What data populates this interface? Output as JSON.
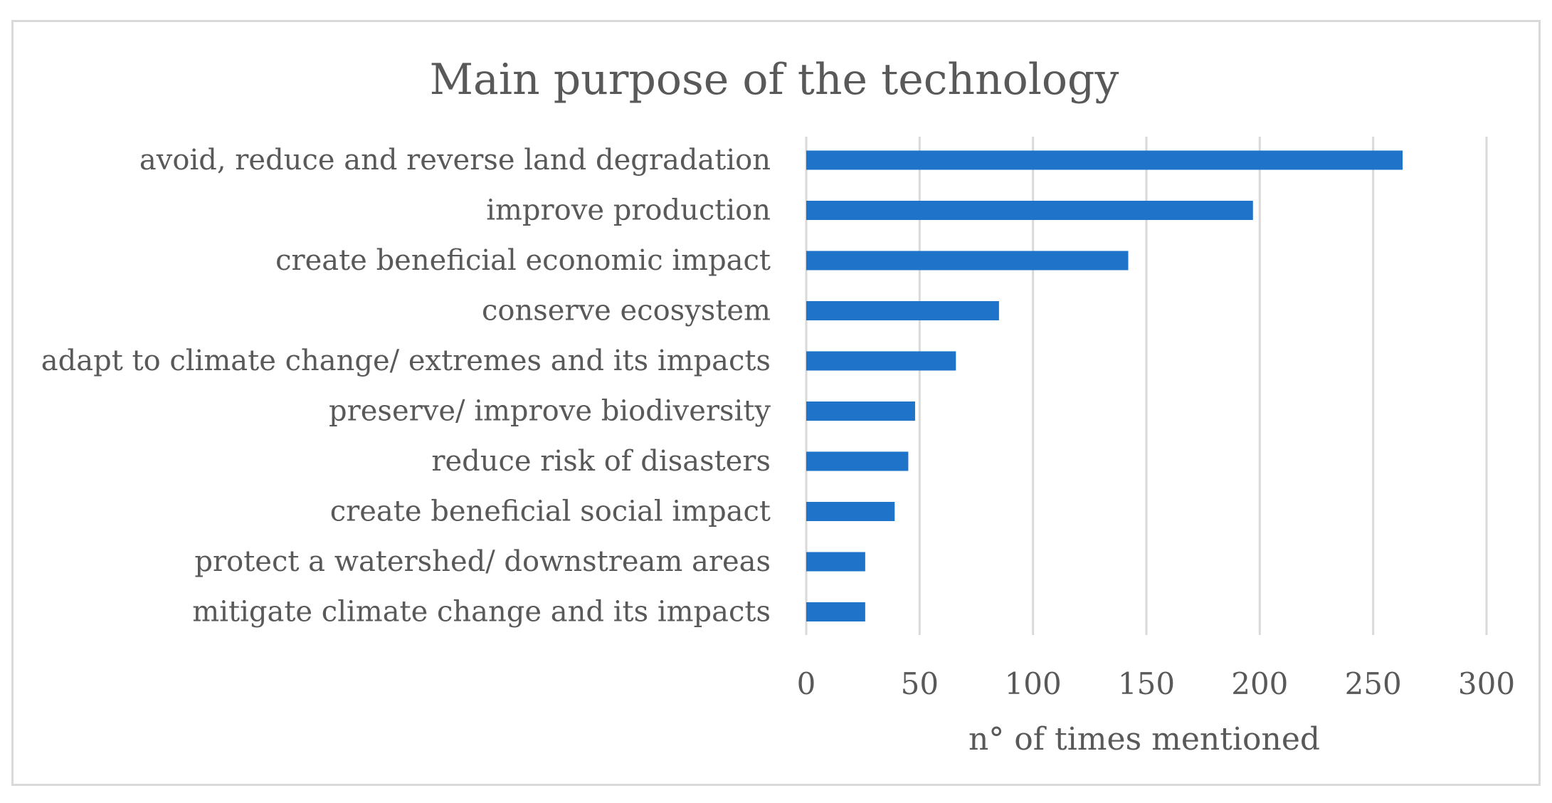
{
  "chart_data": {
    "type": "bar",
    "orientation": "horizontal",
    "title": "Main purpose of the technology",
    "xlabel": "n° of times mentioned",
    "ylabel": "",
    "categories": [
      "avoid, reduce and reverse land degradation",
      "improve production",
      "create beneficial economic impact",
      "conserve ecosystem",
      "adapt to climate change/ extremes and its impacts",
      "preserve/ improve biodiversity",
      "reduce risk of disasters",
      "create beneficial social impact",
      "protect a watershed/ downstream areas",
      "mitigate climate change and its impacts"
    ],
    "values": [
      263,
      197,
      142,
      85,
      66,
      48,
      45,
      39,
      26,
      26
    ],
    "xlim": [
      0,
      300
    ],
    "xticks": [
      "0",
      "50",
      "100",
      "150",
      "200",
      "250",
      "300"
    ],
    "grid": true,
    "legend": "none",
    "bar_color": "#1f74c9"
  }
}
